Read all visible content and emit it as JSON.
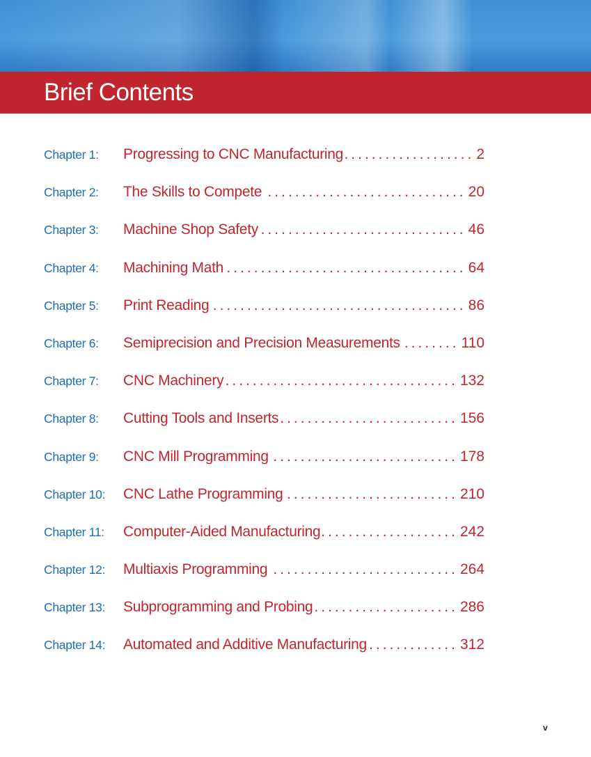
{
  "header": {
    "title": "Brief Contents"
  },
  "chapters": [
    {
      "label": "Chapter 1:",
      "title": "Progressing to CNC Manufacturing",
      "page": "2"
    },
    {
      "label": "Chapter 2:",
      "title": "The Skills to Compete",
      "page": "20"
    },
    {
      "label": "Chapter 3:",
      "title": "Machine Shop Safety",
      "page": "46"
    },
    {
      "label": "Chapter 4:",
      "title": "Machining Math",
      "page": "64"
    },
    {
      "label": "Chapter 5:",
      "title": "Print Reading",
      "page": "86"
    },
    {
      "label": "Chapter 6:",
      "title": "Semiprecision and Precision Measurements",
      "page": "110"
    },
    {
      "label": "Chapter 7:",
      "title": "CNC Machinery",
      "page": "132"
    },
    {
      "label": "Chapter 8:",
      "title": "Cutting Tools and Inserts",
      "page": "156"
    },
    {
      "label": "Chapter 9:",
      "title": "CNC Mill Programming",
      "page": "178"
    },
    {
      "label": "Chapter 10:",
      "title": "CNC Lathe Programming",
      "page": "210"
    },
    {
      "label": "Chapter 11:",
      "title": "Computer-Aided Manufacturing",
      "page": "242"
    },
    {
      "label": "Chapter 12:",
      "title": "Multiaxis Programming",
      "page": "264"
    },
    {
      "label": "Chapter 13:",
      "title": "Subprogramming and Probing",
      "page": "286"
    },
    {
      "label": "Chapter 14:",
      "title": "Automated and Additive Manufacturing",
      "page": "312"
    }
  ],
  "footer": {
    "page_number": "v"
  },
  "colors": {
    "accent_red": "#c1262f",
    "chapter_blue": "#1f6db3"
  }
}
